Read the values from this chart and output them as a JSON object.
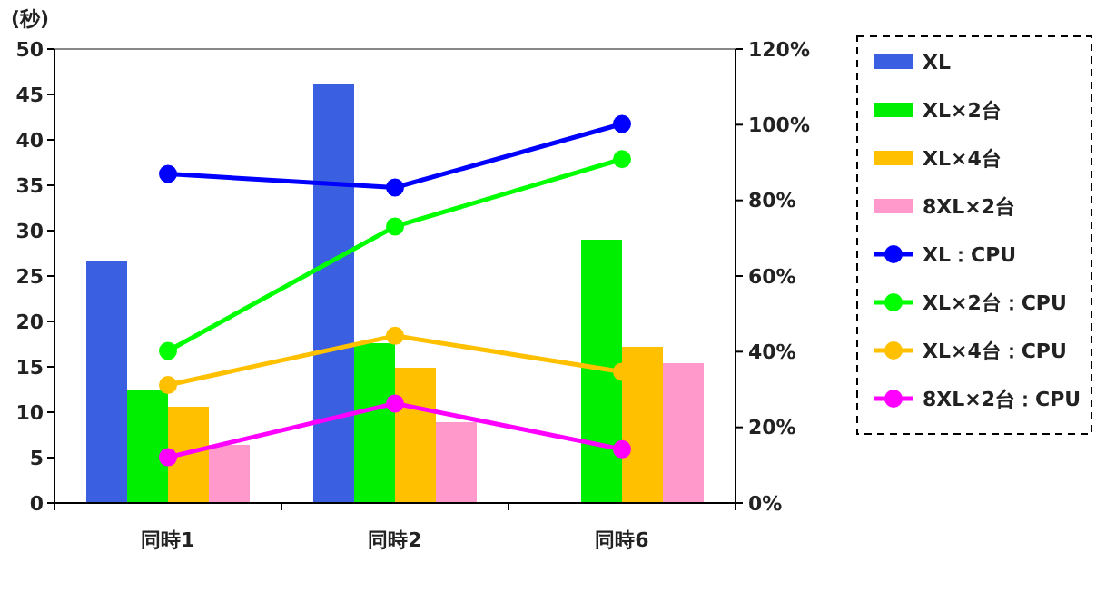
{
  "chart_data": {
    "type": "bar",
    "ylabel": "(秒)",
    "categories": [
      "同時1",
      "同時2",
      "同時6"
    ],
    "series": [
      {
        "name": "XL",
        "color": "#3a5fe0",
        "values": [
          26.6,
          46.2,
          null
        ]
      },
      {
        "name": "XL×2台",
        "color": "#00ee00",
        "values": [
          12.4,
          17.6,
          29.0
        ]
      },
      {
        "name": "XL×4台",
        "color": "#ffc000",
        "values": [
          10.6,
          14.9,
          17.2
        ]
      },
      {
        "name": "8XL×2台",
        "color": "#ff99cc",
        "values": [
          6.4,
          8.9,
          15.4
        ]
      },
      {
        "name": "XL：CPU",
        "type": "line",
        "axis": "y2",
        "color": "#0000ff",
        "values": [
          87,
          83.4,
          100.2
        ]
      },
      {
        "name": "XL×2台：CPU",
        "type": "line",
        "axis": "y2",
        "color": "#00ff00",
        "values": [
          40.2,
          73.1,
          90.9
        ]
      },
      {
        "name": "XL×4台：CPU",
        "type": "line",
        "axis": "y2",
        "color": "#ffc000",
        "values": [
          31.2,
          44.2,
          34.7
        ]
      },
      {
        "name": "8XL×2台：CPU",
        "type": "line",
        "axis": "y2",
        "color": "#ff00ff",
        "values": [
          12.1,
          26.3,
          14.2
        ]
      }
    ],
    "ylim": [
      0,
      50
    ],
    "yticks": [
      0,
      5,
      10,
      15,
      20,
      25,
      30,
      35,
      40,
      45,
      50
    ],
    "y2lim": [
      0,
      120
    ],
    "y2ticks": [
      {
        "value": 0,
        "label": "0%"
      },
      {
        "value": 20,
        "label": "20%"
      },
      {
        "value": 40,
        "label": "40%"
      },
      {
        "value": 60,
        "label": "60%"
      },
      {
        "value": 80,
        "label": "80%"
      },
      {
        "value": 100,
        "label": "100%"
      },
      {
        "value": 120,
        "label": "120%"
      }
    ],
    "grid": false,
    "legend": "right",
    "marker": "circle"
  }
}
